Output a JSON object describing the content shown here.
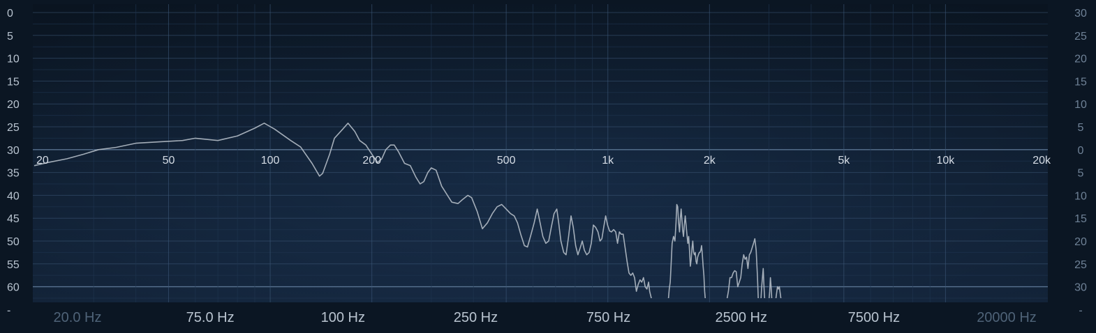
{
  "chart_data": {
    "type": "line",
    "title": "",
    "xlabel": "",
    "ylabel": "",
    "x_scale": "log",
    "xlim": [
      20,
      20000
    ],
    "left_axis": {
      "ticks": [
        "0",
        "5",
        "10",
        "15",
        "20",
        "25",
        "30",
        "35",
        "40",
        "45",
        "50",
        "55",
        "60",
        "-"
      ],
      "range": [
        0,
        65
      ]
    },
    "right_axis": {
      "ticks": [
        "30",
        "25",
        "20",
        "15",
        "10",
        "5",
        "0",
        "5",
        "10",
        "15",
        "20",
        "25",
        "30",
        "-"
      ]
    },
    "freq_ticks": [
      {
        "label": "20",
        "hz": 20
      },
      {
        "label": "50",
        "hz": 50
      },
      {
        "label": "100",
        "hz": 100
      },
      {
        "label": "200",
        "hz": 200
      },
      {
        "label": "500",
        "hz": 500
      },
      {
        "label": "1k",
        "hz": 1000
      },
      {
        "label": "2k",
        "hz": 2000
      },
      {
        "label": "5k",
        "hz": 5000
      },
      {
        "label": "10k",
        "hz": 10000
      },
      {
        "label": "20k",
        "hz": 20000
      }
    ],
    "bottom_labels": [
      {
        "text": "20.0 Hz",
        "dim": true
      },
      {
        "text": "75.0 Hz",
        "dim": false
      },
      {
        "text": "100 Hz",
        "dim": false
      },
      {
        "text": "250 Hz",
        "dim": false
      },
      {
        "text": "750 Hz",
        "dim": false
      },
      {
        "text": "2500 Hz",
        "dim": false
      },
      {
        "text": "7500 Hz",
        "dim": false
      },
      {
        "text": "20000 Hz",
        "dim": true
      }
    ],
    "grid": true,
    "colors": {
      "background_top": "#0f1e30",
      "background_bottom": "#1b3352",
      "trace": "#b4bcc6",
      "major_grid": "#3d5878",
      "minor_grid": "#1f3550",
      "label": "#d6dde6",
      "axis_label": "#b9c4d0",
      "dim_label": "#4f6378"
    },
    "series": [
      {
        "segments": [
          [
            [
              20,
              33.5
            ],
            [
              22,
              32.8
            ],
            [
              25,
              32
            ],
            [
              28,
              31
            ],
            [
              31,
              30
            ],
            [
              35,
              29.5
            ],
            [
              40,
              28.6
            ],
            [
              47,
              28.3
            ],
            [
              55,
              28
            ],
            [
              60,
              27.5
            ],
            [
              70,
              28
            ],
            [
              80,
              27
            ],
            [
              90,
              25.3
            ],
            [
              96,
              24.2
            ],
            [
              103,
              25.5
            ],
            [
              115,
              28
            ],
            [
              123,
              29.4
            ],
            [
              133,
              33
            ],
            [
              140,
              35.8
            ],
            [
              143,
              35.2
            ],
            [
              150,
              31
            ],
            [
              155,
              27.5
            ],
            [
              164,
              25.5
            ],
            [
              170,
              24.2
            ],
            [
              178,
              26
            ],
            [
              184,
              28
            ],
            [
              192,
              29
            ],
            [
              200,
              31
            ],
            [
              208,
              32.8
            ],
            [
              214,
              32
            ],
            [
              220,
              30
            ],
            [
              227,
              29
            ],
            [
              233,
              29
            ],
            [
              240,
              30.5
            ],
            [
              250,
              33
            ],
            [
              260,
              33.5
            ],
            [
              270,
              36
            ],
            [
              278,
              37.5
            ],
            [
              285,
              37
            ],
            [
              293,
              35
            ],
            [
              300,
              34
            ],
            [
              310,
              34.5
            ],
            [
              322,
              38
            ],
            [
              335,
              40
            ],
            [
              345,
              41.5
            ],
            [
              360,
              41.8
            ],
            [
              370,
              41
            ],
            [
              385,
              40
            ],
            [
              395,
              40.5
            ],
            [
              410,
              43.5
            ],
            [
              425,
              47.3
            ],
            [
              440,
              46
            ],
            [
              455,
              44
            ],
            [
              470,
              42.5
            ],
            [
              485,
              42
            ],
            [
              500,
              43
            ],
            [
              515,
              44
            ],
            [
              528,
              44.5
            ],
            [
              540,
              46
            ],
            [
              552,
              48.5
            ],
            [
              566,
              51
            ],
            [
              578,
              51.3
            ],
            [
              590,
              49
            ],
            [
              605,
              46
            ],
            [
              618,
              43
            ],
            [
              630,
              46
            ],
            [
              642,
              49
            ],
            [
              655,
              50.5
            ],
            [
              668,
              50
            ],
            [
              680,
              47
            ],
            [
              693,
              44
            ],
            [
              706,
              43
            ],
            [
              715,
              46
            ],
            [
              726,
              50
            ],
            [
              740,
              52.5
            ],
            [
              752,
              53
            ],
            [
              765,
              49
            ],
            [
              778,
              44.5
            ],
            [
              790,
              47
            ],
            [
              803,
              51
            ],
            [
              815,
              53
            ],
            [
              828,
              51.5
            ],
            [
              840,
              50
            ],
            [
              852,
              52
            ],
            [
              866,
              53
            ],
            [
              880,
              52.5
            ],
            [
              893,
              50.5
            ],
            [
              906,
              46.5
            ],
            [
              920,
              47
            ],
            [
              935,
              48
            ],
            [
              948,
              50
            ],
            [
              960,
              49.5
            ],
            [
              972,
              47
            ],
            [
              985,
              44.5
            ],
            [
              998,
              46.5
            ],
            [
              1012,
              47.8
            ],
            [
              1025,
              48
            ],
            [
              1040,
              47.5
            ],
            [
              1055,
              48
            ],
            [
              1068,
              50.5
            ],
            [
              1082,
              48
            ],
            [
              1095,
              48.5
            ],
            [
              1110,
              48.5
            ],
            [
              1125,
              51.5
            ],
            [
              1140,
              54.5
            ],
            [
              1155,
              57
            ],
            [
              1170,
              57.5
            ],
            [
              1185,
              57
            ],
            [
              1200,
              58
            ],
            [
              1215,
              61
            ],
            [
              1230,
              59.5
            ],
            [
              1245,
              58.5
            ],
            [
              1260,
              59
            ],
            [
              1275,
              58
            ],
            [
              1290,
              60
            ],
            [
              1305,
              60.5
            ],
            [
              1320,
              59
            ],
            [
              1330,
              61
            ],
            [
              1340,
              62
            ],
            [
              1350,
              63
            ]
          ],
          [
            [
              1510,
              63
            ],
            [
              1520,
              60.5
            ],
            [
              1530,
              59
            ],
            [
              1540,
              55
            ],
            [
              1550,
              50.5
            ],
            [
              1565,
              49
            ],
            [
              1580,
              50
            ],
            [
              1592,
              46
            ],
            [
              1600,
              42
            ],
            [
              1610,
              42.5
            ],
            [
              1620,
              46
            ],
            [
              1630,
              48
            ],
            [
              1640,
              45
            ],
            [
              1648,
              43
            ],
            [
              1656,
              45
            ],
            [
              1665,
              47.5
            ],
            [
              1675,
              49
            ],
            [
              1685,
              46.5
            ],
            [
              1695,
              44.5
            ],
            [
              1705,
              46.5
            ],
            [
              1715,
              48.5
            ],
            [
              1725,
              50.5
            ],
            [
              1735,
              49
            ],
            [
              1745,
              52
            ],
            [
              1755,
              55.5
            ],
            [
              1765,
              54
            ],
            [
              1775,
              51.5
            ],
            [
              1785,
              50
            ],
            [
              1795,
              52.5
            ],
            [
              1805,
              53
            ],
            [
              1815,
              52.5
            ],
            [
              1825,
              54.5
            ],
            [
              1835,
              55
            ],
            [
              1845,
              53.5
            ],
            [
              1855,
              53
            ],
            [
              1865,
              52.5
            ],
            [
              1875,
              52.5
            ],
            [
              1885,
              52
            ],
            [
              1895,
              51
            ],
            [
              1905,
              53
            ],
            [
              1915,
              55.5
            ],
            [
              1925,
              57.5
            ],
            [
              1935,
              61
            ],
            [
              1945,
              63
            ]
          ],
          [
            [
              2250,
              63
            ],
            [
              2275,
              61
            ],
            [
              2300,
              58
            ],
            [
              2325,
              58
            ],
            [
              2350,
              57
            ],
            [
              2375,
              56.5
            ],
            [
              2400,
              56.7
            ],
            [
              2425,
              60
            ],
            [
              2450,
              59
            ],
            [
              2475,
              58
            ],
            [
              2500,
              55
            ],
            [
              2525,
              53
            ],
            [
              2550,
              54
            ],
            [
              2575,
              53.5
            ],
            [
              2600,
              56
            ],
            [
              2625,
              53
            ],
            [
              2650,
              52.5
            ],
            [
              2675,
              51.5
            ],
            [
              2700,
              50.5
            ],
            [
              2725,
              49.5
            ],
            [
              2750,
              52
            ],
            [
              2775,
              58
            ],
            [
              2790,
              63
            ]
          ],
          [
            [
              2840,
              63
            ],
            [
              2855,
              60
            ],
            [
              2870,
              58
            ],
            [
              2885,
              56
            ],
            [
              2900,
              60
            ],
            [
              2915,
              63
            ]
          ],
          [
            [
              3000,
              63
            ],
            [
              3015,
              61
            ],
            [
              3030,
              58
            ],
            [
              3045,
              60
            ],
            [
              3060,
              63
            ]
          ],
          [
            [
              3140,
              63
            ],
            [
              3160,
              61.5
            ],
            [
              3180,
              60
            ],
            [
              3200,
              60.5
            ],
            [
              3220,
              60
            ],
            [
              3240,
              61.5
            ],
            [
              3260,
              63
            ]
          ]
        ]
      }
    ]
  }
}
